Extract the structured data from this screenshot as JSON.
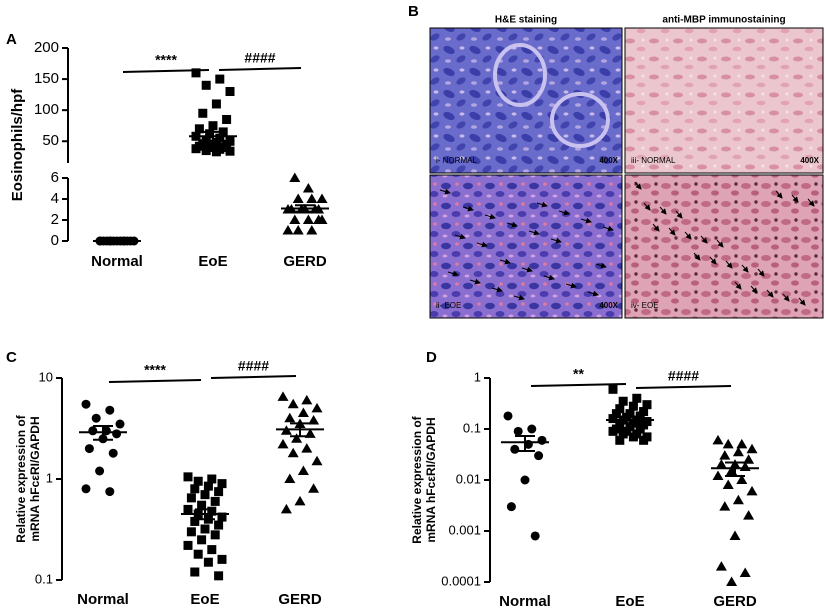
{
  "chart_data": [
    {
      "type": "dotplot",
      "panel_label": "A",
      "ylabel": [
        "Eosinophils/hpf"
      ],
      "categories": [
        "Normal",
        "EoE",
        "GERD"
      ],
      "markers": [
        "circle",
        "square",
        "triangle"
      ],
      "color": "#000000",
      "y_segments": [
        {
          "ylim": [
            0,
            6
          ],
          "yticks": [
            0,
            2,
            4,
            6
          ]
        },
        {
          "ylim": [
            15,
            200
          ],
          "yticks": [
            50,
            100,
            150,
            200
          ]
        }
      ],
      "values": [
        [
          0,
          0,
          0,
          0,
          0,
          0,
          0,
          0,
          0,
          0,
          0,
          0,
          0,
          0
        ],
        [
          160,
          150,
          140,
          130,
          110,
          95,
          85,
          75,
          70,
          65,
          62,
          58,
          55,
          52,
          50,
          48,
          46,
          45,
          44,
          42,
          40,
          40,
          38,
          37,
          35,
          34,
          33
        ],
        [
          1,
          1,
          1,
          2,
          2,
          2,
          2,
          3,
          3,
          3,
          3,
          3,
          4,
          4,
          4,
          5,
          6,
          3
        ]
      ],
      "means": [
        0,
        58,
        3.1
      ],
      "sems": [
        0,
        7,
        0.3
      ],
      "annotations": [
        "****",
        "####"
      ]
    },
    {
      "type": "dotplot",
      "panel_label": "C",
      "ylabel": [
        "Relative expression of",
        "mRNA hFcεRI/GAPDH"
      ],
      "categories": [
        "Normal",
        "EoE",
        "GERD"
      ],
      "markers": [
        "circle",
        "square",
        "triangle"
      ],
      "color": "#000000",
      "log_y": true,
      "y_segments": [
        {
          "ylim": [
            0.1,
            10
          ],
          "yticks": [
            0.1,
            1,
            10
          ]
        }
      ],
      "values": [
        [
          5.5,
          4.8,
          4,
          3.5,
          3,
          3,
          2.8,
          2.5,
          2,
          1.8,
          1.2,
          0.8,
          0.75
        ],
        [
          1.05,
          1,
          0.95,
          0.9,
          0.85,
          0.8,
          0.75,
          0.7,
          0.65,
          0.6,
          0.55,
          0.5,
          0.48,
          0.45,
          0.42,
          0.4,
          0.38,
          0.35,
          0.32,
          0.3,
          0.28,
          0.25,
          0.22,
          0.2,
          0.18,
          0.16,
          0.15,
          0.12,
          0.11
        ],
        [
          6.5,
          6,
          5.5,
          5,
          4.5,
          4,
          3.8,
          3.5,
          3,
          2.8,
          2.5,
          2.2,
          2,
          1.8,
          1.5,
          1.2,
          1,
          0.8,
          0.6,
          0.5
        ]
      ],
      "means": [
        2.9,
        0.45,
        3.1
      ],
      "sems": [
        0.45,
        0.05,
        0.45
      ],
      "annotations": [
        "****",
        "####"
      ]
    },
    {
      "type": "dotplot",
      "panel_label": "D",
      "ylabel": [
        "Relative expression of",
        "mRNA hFcεRI/GAPDH"
      ],
      "categories": [
        "Normal",
        "EoE",
        "GERD"
      ],
      "markers": [
        "circle",
        "square",
        "triangle"
      ],
      "color": "#000000",
      "log_y": true,
      "y_segments": [
        {
          "ylim": [
            0.0001,
            1
          ],
          "yticks": [
            0.0001,
            0.001,
            0.01,
            0.1,
            1
          ]
        }
      ],
      "values": [
        [
          0.18,
          0.1,
          0.09,
          0.06,
          0.05,
          0.04,
          0.03,
          0.01,
          0.003,
          0.0008
        ],
        [
          0.6,
          0.4,
          0.35,
          0.3,
          0.28,
          0.25,
          0.22,
          0.2,
          0.2,
          0.18,
          0.17,
          0.16,
          0.15,
          0.15,
          0.14,
          0.13,
          0.12,
          0.12,
          0.11,
          0.1,
          0.1,
          0.09,
          0.09,
          0.08,
          0.08,
          0.07,
          0.07,
          0.06,
          0.06
        ],
        [
          0.06,
          0.05,
          0.05,
          0.04,
          0.035,
          0.03,
          0.025,
          0.02,
          0.02,
          0.018,
          0.015,
          0.012,
          0.01,
          0.008,
          0.006,
          0.004,
          0.003,
          0.002,
          0.0008,
          0.0002,
          0.00015,
          0.0001
        ]
      ],
      "means": [
        0.055,
        0.15,
        0.017
      ],
      "sems": [
        0.018,
        0.02,
        0.005
      ],
      "annotations": [
        "**",
        "####"
      ]
    }
  ],
  "image_panel": {
    "panel_label": "B",
    "columns": [
      "H&E staining",
      "anti-MBP immunostaining"
    ],
    "images": [
      {
        "label": "i- NORMAL",
        "magnification": "400X"
      },
      {
        "label": "iii- NORMAL",
        "magnification": "400X"
      },
      {
        "label": "ii- EOE",
        "magnification": "400X"
      },
      {
        "label": "iv- EOE"
      }
    ]
  }
}
